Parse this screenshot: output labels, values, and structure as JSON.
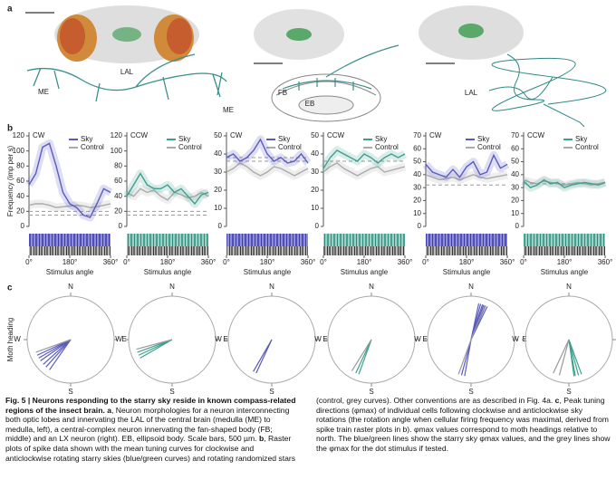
{
  "figure": {
    "panel_labels": [
      "a",
      "b",
      "c"
    ],
    "panel_a_labels": [
      "LAL",
      "ME",
      "ME",
      "FB",
      "EB",
      "LAL"
    ]
  },
  "chart_data": [
    {
      "type": "line",
      "title": "CW",
      "ylabel": "Frequency (imp per s)",
      "xlabel": "Stimulus angle",
      "x": [
        0,
        30,
        60,
        90,
        120,
        150,
        180,
        210,
        240,
        270,
        300,
        330,
        360
      ],
      "xlim": [
        0,
        360
      ],
      "xticks": [
        {
          "value": 0,
          "label": "0°"
        },
        {
          "value": 180,
          "label": "180°"
        },
        {
          "value": 360,
          "label": "360°"
        }
      ],
      "ylim": [
        0,
        120
      ],
      "yticks": [
        0,
        20,
        40,
        60,
        80,
        100,
        120
      ],
      "reference_lines": [
        15,
        20
      ],
      "raster": "blue",
      "series": [
        {
          "name": "Sky",
          "color": "#5b5bbf",
          "values": [
            55,
            70,
            105,
            110,
            80,
            45,
            30,
            25,
            15,
            12,
            30,
            50,
            45
          ]
        },
        {
          "name": "Control",
          "color": "#aaaaaa",
          "values": [
            28,
            30,
            30,
            28,
            25,
            26,
            27,
            28,
            27,
            25,
            26,
            28,
            30
          ]
        }
      ]
    },
    {
      "type": "line",
      "title": "CCW",
      "xlabel": "Stimulus angle",
      "x": [
        0,
        30,
        60,
        90,
        120,
        150,
        180,
        210,
        240,
        270,
        300,
        330,
        360
      ],
      "xlim": [
        0,
        360
      ],
      "xticks": [
        {
          "value": 0,
          "label": "0°"
        },
        {
          "value": 180,
          "label": "180°"
        },
        {
          "value": 360,
          "label": "360°"
        }
      ],
      "ylim": [
        0,
        120
      ],
      "yticks": [
        0,
        20,
        40,
        60,
        80,
        100,
        120
      ],
      "reference_lines": [
        15,
        20
      ],
      "raster": "green",
      "series": [
        {
          "name": "Sky",
          "color": "#3f9f8f",
          "values": [
            40,
            55,
            70,
            55,
            50,
            50,
            55,
            45,
            50,
            40,
            30,
            42,
            45
          ]
        },
        {
          "name": "Control",
          "color": "#aaaaaa",
          "values": [
            45,
            40,
            50,
            45,
            48,
            40,
            35,
            45,
            42,
            38,
            40,
            45,
            40
          ]
        }
      ]
    },
    {
      "type": "line",
      "title": "CW",
      "xlabel": "Stimulus angle",
      "x": [
        0,
        30,
        60,
        90,
        120,
        150,
        180,
        210,
        240,
        270,
        300,
        330,
        360
      ],
      "xlim": [
        0,
        360
      ],
      "xticks": [
        {
          "value": 0,
          "label": "0°"
        },
        {
          "value": 180,
          "label": "180°"
        },
        {
          "value": 360,
          "label": "360°"
        }
      ],
      "ylim": [
        0,
        50
      ],
      "yticks": [
        0,
        10,
        20,
        30,
        40,
        50
      ],
      "reference_lines": [
        38,
        36
      ],
      "raster": "blue",
      "series": [
        {
          "name": "Sky",
          "color": "#5b5bbf",
          "values": [
            38,
            40,
            36,
            38,
            42,
            48,
            40,
            36,
            38,
            35,
            36,
            40,
            35
          ]
        },
        {
          "name": "Control",
          "color": "#aaaaaa",
          "values": [
            30,
            32,
            35,
            33,
            30,
            28,
            30,
            33,
            32,
            30,
            28,
            30,
            32
          ]
        }
      ]
    },
    {
      "type": "line",
      "title": "CCW",
      "xlabel": "Stimulus angle",
      "x": [
        0,
        30,
        60,
        90,
        120,
        150,
        180,
        210,
        240,
        270,
        300,
        330,
        360
      ],
      "xlim": [
        0,
        360
      ],
      "xticks": [
        {
          "value": 0,
          "label": "0°"
        },
        {
          "value": 180,
          "label": "180°"
        },
        {
          "value": 360,
          "label": "360°"
        }
      ],
      "ylim": [
        0,
        50
      ],
      "yticks": [
        0,
        10,
        20,
        30,
        40,
        50
      ],
      "reference_lines": [
        36
      ],
      "raster": "green",
      "series": [
        {
          "name": "Sky",
          "color": "#3f9f8f",
          "values": [
            32,
            38,
            42,
            40,
            38,
            36,
            40,
            38,
            35,
            38,
            40,
            38,
            40
          ]
        },
        {
          "name": "Control",
          "color": "#aaaaaa",
          "values": [
            30,
            33,
            35,
            32,
            30,
            28,
            30,
            32,
            33,
            30,
            31,
            32,
            33
          ]
        }
      ]
    },
    {
      "type": "line",
      "title": "CW",
      "xlabel": "Stimulus angle",
      "x": [
        0,
        30,
        60,
        90,
        120,
        150,
        180,
        210,
        240,
        270,
        300,
        330,
        360
      ],
      "xlim": [
        0,
        360
      ],
      "xticks": [
        {
          "value": 0,
          "label": "0°"
        },
        {
          "value": 180,
          "label": "180°"
        },
        {
          "value": 360,
          "label": "360°"
        }
      ],
      "ylim": [
        0,
        70
      ],
      "yticks": [
        0,
        10,
        20,
        30,
        40,
        50,
        60,
        70
      ],
      "reference_lines": [
        32
      ],
      "raster": "blue",
      "series": [
        {
          "name": "Sky",
          "color": "#5b5bbf",
          "values": [
            48,
            42,
            40,
            38,
            44,
            38,
            46,
            50,
            40,
            42,
            55,
            45,
            48
          ]
        },
        {
          "name": "Control",
          "color": "#aaaaaa",
          "values": [
            40,
            38,
            36,
            37,
            38,
            36,
            38,
            40,
            38,
            37,
            38,
            39,
            40
          ]
        }
      ]
    },
    {
      "type": "line",
      "title": "CCW",
      "xlabel": "Stimulus angle",
      "x": [
        0,
        30,
        60,
        90,
        120,
        150,
        180,
        210,
        240,
        270,
        300,
        330,
        360
      ],
      "xlim": [
        0,
        360
      ],
      "xticks": [
        {
          "value": 0,
          "label": "0°"
        },
        {
          "value": 180,
          "label": "180°"
        },
        {
          "value": 360,
          "label": "360°"
        }
      ],
      "ylim": [
        0,
        70
      ],
      "yticks": [
        0,
        10,
        20,
        30,
        40,
        50,
        60,
        70
      ],
      "reference_lines": [
        33
      ],
      "raster": "green",
      "series": [
        {
          "name": "Sky",
          "color": "#3f9f8f",
          "values": [
            35,
            30,
            32,
            36,
            33,
            34,
            30,
            32,
            33,
            34,
            33,
            32,
            34
          ]
        },
        {
          "name": "Control",
          "color": "#aaaaaa",
          "values": [
            36,
            34,
            33,
            35,
            34,
            33,
            32,
            33,
            34,
            33,
            32,
            33,
            34
          ]
        }
      ]
    },
    {
      "type": "polar",
      "ylabel": "Moth heading",
      "directions": [
        "N",
        "E",
        "S",
        "W"
      ],
      "series": [
        {
          "color": "#5b5bbf",
          "values": [
            215,
            222,
            228,
            235,
            240,
            245
          ]
        },
        {
          "color": "#999999",
          "values": [
            250
          ]
        }
      ]
    },
    {
      "type": "polar",
      "directions": [
        "N",
        "E",
        "S",
        "W"
      ],
      "series": [
        {
          "color": "#3f9f8f",
          "values": [
            240,
            245,
            250
          ]
        },
        {
          "color": "#999999",
          "values": [
            255
          ]
        }
      ]
    },
    {
      "type": "polar",
      "directions": [
        "N",
        "E",
        "S",
        "W"
      ],
      "series": [
        {
          "color": "#5b5bbf",
          "values": [
            205,
            210
          ]
        }
      ]
    },
    {
      "type": "polar",
      "directions": [
        "N",
        "E",
        "S",
        "W"
      ],
      "series": [
        {
          "color": "#3f9f8f",
          "values": [
            200,
            205
          ]
        },
        {
          "color": "#999999",
          "values": [
            212
          ]
        }
      ]
    },
    {
      "type": "polar",
      "directions": [
        "N",
        "E",
        "S",
        "W"
      ],
      "series": [
        {
          "color": "#5b5bbf",
          "values": [
            12,
            15,
            18,
            20,
            23,
            26,
            190,
            195
          ]
        },
        {
          "color": "#999999",
          "values": [
            22,
            200
          ]
        }
      ]
    },
    {
      "type": "polar",
      "directions": [
        "N",
        "E",
        "S",
        "W"
      ],
      "series": [
        {
          "color": "#3f9f8f",
          "values": [
            160,
            165,
            170,
            172
          ]
        },
        {
          "color": "#999999",
          "values": [
            195,
            205
          ]
        }
      ]
    }
  ],
  "caption": {
    "parts": [
      {
        "text": "Fig. 5 | Neurons responding to the starry sky reside in known compass-related regions of the insect brain. a",
        "bold": true
      },
      {
        "text": ", Neuron morphologies for a neuron interconnecting both optic lobes and innervating the LAL of the central brain (medulla (ME) to medulla, left), a central-complex neuron innervating the fan-shaped body (FB; middle) and an LX neuron (right). EB, ellipsoid body. Scale bars, 500 µm. ",
        "bold": false
      },
      {
        "text": "b",
        "bold": true
      },
      {
        "text": ", Raster plots of spike data shown with the mean tuning curves for clockwise and anticlockwise rotating starry skies (blue/green curves) and rotating randomized stars (control, grey curves). Other conventions are as described in Fig. 4a. ",
        "bold": false
      },
      {
        "text": "c",
        "bold": true
      },
      {
        "text": ", Peak tuning directions (φmax) of individual cells following clockwise and anticlockwise sky rotations (the rotation angle when cellular firing frequency was maximal, derived from spike train raster plots in b). φmax values correspond to moth headings relative to north. The blue/green lines show the starry sky φmax values, and the grey lines show the φmax for the dot stimulus if tested.",
        "bold": false
      }
    ]
  }
}
